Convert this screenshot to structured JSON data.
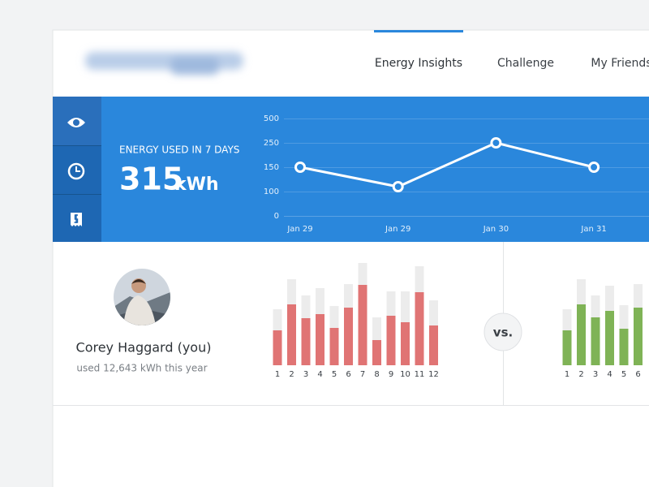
{
  "nav": {
    "items": [
      "Energy Insights",
      "Challenge",
      "My Friends"
    ],
    "active": 0
  },
  "summary": {
    "label": "ENERGY USED IN 7 DAYS",
    "value": 315,
    "unit": "kWh"
  },
  "usage_chart": {
    "type": "line",
    "categories": [
      "Jan 29",
      "Jan 29",
      "Jan 30",
      "Jan 31"
    ],
    "values": [
      150,
      110,
      250,
      150
    ],
    "ylim": [
      0,
      500
    ],
    "yticks": [
      0,
      100,
      150,
      250,
      500
    ],
    "grid": true,
    "color": "#ffffff"
  },
  "user": {
    "name": "Corey Haggard (you)",
    "usage": "used 12,643 kWh this year"
  },
  "versus": "vs.",
  "user_chart": {
    "type": "bar",
    "categories": [
      "1",
      "2",
      "3",
      "4",
      "5",
      "6",
      "7",
      "8",
      "9",
      "10",
      "11",
      "12"
    ],
    "values": [
      43,
      75,
      58,
      63,
      46,
      71,
      99,
      31,
      61,
      53,
      90,
      49
    ],
    "background_values": [
      69,
      106,
      86,
      95,
      73,
      100,
      126,
      59,
      91,
      91,
      122,
      80
    ],
    "color": "#e07474",
    "background_color": "#ececec"
  },
  "friend_chart": {
    "type": "bar",
    "categories": [
      "1",
      "2",
      "3",
      "4",
      "5",
      "6"
    ],
    "values": [
      43,
      75,
      59,
      67,
      45,
      71
    ],
    "background_values": [
      69,
      106,
      86,
      98,
      74,
      100
    ],
    "color": "#7fb356",
    "background_color": "#ececec"
  }
}
